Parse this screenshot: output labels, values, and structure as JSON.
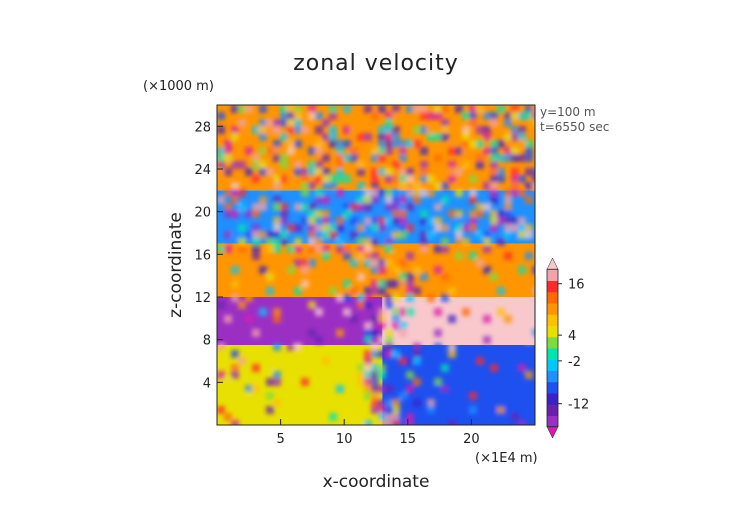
{
  "chart_data": {
    "type": "heatmap",
    "title": "zonal velocity",
    "xlabel": "x-coordinate",
    "ylabel": "z-coordinate",
    "x_unit": "(×1E4 m)",
    "y_unit": "(×1000 m)",
    "annotations": [
      "y=100 m",
      "t=6550 sec"
    ],
    "xlim": [
      0,
      25
    ],
    "ylim": [
      0,
      30
    ],
    "x_ticks": [
      5,
      10,
      15,
      20
    ],
    "y_ticks": [
      4,
      8,
      12,
      16,
      20,
      24,
      28
    ],
    "grid": false,
    "colorbar": {
      "position": "right",
      "tick_labels": [
        "16",
        "4",
        "-2",
        "-12"
      ],
      "tick_values": [
        16,
        4,
        -2,
        -12
      ],
      "range": [
        -20,
        22
      ],
      "colors": [
        "#d81bb0",
        "#9b2fc4",
        "#6a1fb0",
        "#3a22c8",
        "#1e50f0",
        "#1e90ff",
        "#00c8ff",
        "#00e5b0",
        "#7cdc3c",
        "#e8e000",
        "#ffc000",
        "#ff9500",
        "#ff6a00",
        "#ff2a2a",
        "#f4a3a8",
        "#f8c8cc"
      ]
    },
    "layers": [
      {
        "z_range": [
          0,
          7.5
        ],
        "x_range": [
          0,
          13
        ],
        "value": 6
      },
      {
        "z_range": [
          0,
          7.5
        ],
        "x_range": [
          13,
          25
        ],
        "value": -9
      },
      {
        "z_range": [
          7.5,
          12
        ],
        "x_range": [
          0,
          13
        ],
        "value": -17
      },
      {
        "z_range": [
          7.5,
          12.5
        ],
        "x_range": [
          13,
          25
        ],
        "value": 20
      },
      {
        "z_range": [
          12,
          17
        ],
        "x_range": [
          0,
          25
        ],
        "value": 10
      },
      {
        "z_range": [
          17,
          22
        ],
        "x_range": [
          0,
          25
        ],
        "value": -6
      },
      {
        "z_range": [
          22,
          30
        ],
        "x_range": [
          0,
          25
        ],
        "value": 11
      }
    ]
  }
}
